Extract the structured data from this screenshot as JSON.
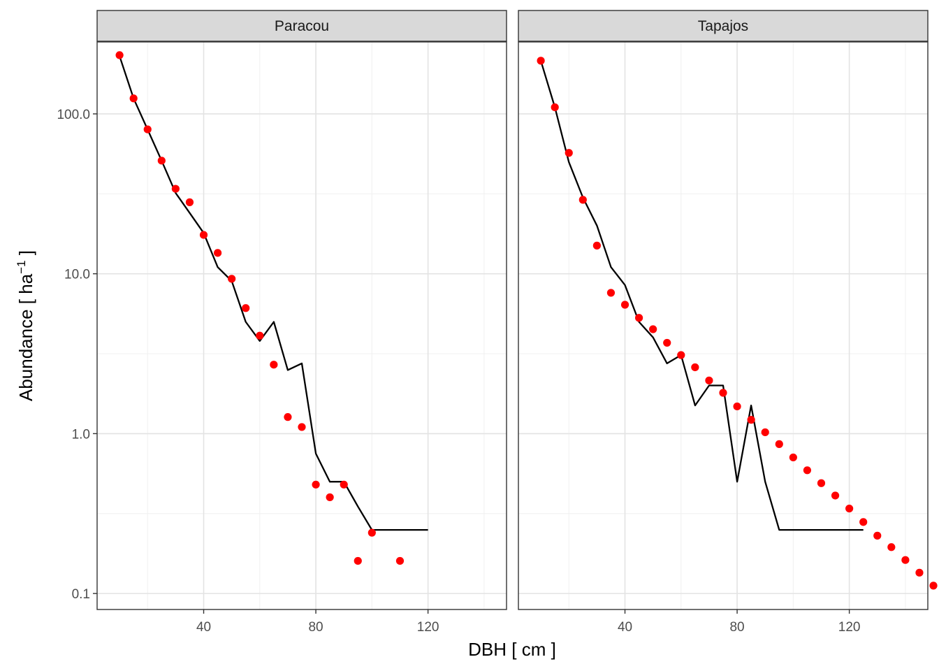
{
  "chart_data": {
    "type": "scatter",
    "xlabel": "DBH [ cm ]",
    "ylabel": {
      "main": "Abundance [ ha",
      "superscript": "−1",
      "close": " ]"
    },
    "xlim": [
      2,
      148
    ],
    "ylim_log10": [
      -1.1,
      2.45
    ],
    "y_scale": "log10",
    "x_ticks": [
      40,
      80,
      120
    ],
    "y_ticks": [
      0.1,
      1.0,
      10.0,
      100.0
    ],
    "y_tick_labels": [
      "0.1",
      "1.0",
      "10.0",
      "100.0"
    ],
    "grid": true,
    "points_color": "#ff0000",
    "line_color": "#000000",
    "panels": [
      {
        "title": "Paracou",
        "line": {
          "x": [
            10,
            15,
            20,
            25,
            30,
            35,
            40,
            45,
            50,
            55,
            60,
            65,
            70,
            75,
            80,
            85,
            90,
            95,
            100,
            105,
            110,
            115,
            120
          ],
          "y": [
            230,
            125,
            80,
            51,
            32,
            24,
            18,
            11,
            9,
            5,
            3.8,
            5,
            2.5,
            2.75,
            0.75,
            0.5,
            0.5,
            0.35,
            0.25,
            0.25,
            0.25,
            0.25,
            0.25
          ]
        },
        "points": {
          "x": [
            10,
            15,
            20,
            25,
            30,
            35,
            40,
            45,
            50,
            55,
            60,
            65,
            70,
            75,
            80,
            85,
            90,
            95,
            100,
            110
          ],
          "y": [
            233,
            125,
            80,
            51,
            34,
            28,
            17.5,
            13.5,
            9.3,
            6.1,
            4.1,
            2.7,
            1.27,
            1.1,
            0.48,
            0.4,
            0.48,
            0.16,
            0.24,
            0.16
          ]
        }
      },
      {
        "title": "Tapajos",
        "line": {
          "x": [
            10,
            15,
            20,
            25,
            30,
            35,
            40,
            45,
            50,
            55,
            60,
            65,
            70,
            75,
            80,
            85,
            90,
            95,
            100,
            105,
            110,
            115,
            120,
            125
          ],
          "y": [
            215,
            110,
            50,
            30,
            20,
            11,
            8.5,
            5,
            4,
            2.75,
            3.1,
            1.5,
            2,
            2,
            0.5,
            1.5,
            0.5,
            0.25,
            0.25,
            0.25,
            0.25,
            0.25,
            0.25,
            0.25
          ]
        },
        "points": {
          "x": [
            10,
            15,
            20,
            25,
            30,
            35,
            40,
            45,
            50,
            55,
            60,
            65,
            70,
            75,
            80,
            85,
            90,
            95,
            100,
            105,
            110,
            115,
            120,
            125,
            130,
            135,
            140,
            145,
            150
          ],
          "y": [
            215,
            110,
            57,
            29,
            15,
            7.6,
            6.4,
            5.3,
            4.5,
            3.7,
            3.1,
            2.6,
            2.15,
            1.8,
            1.48,
            1.22,
            1.02,
            0.86,
            0.71,
            0.59,
            0.49,
            0.41,
            0.34,
            0.28,
            0.23,
            0.195,
            0.162,
            0.135,
            0.112
          ]
        }
      }
    ]
  }
}
